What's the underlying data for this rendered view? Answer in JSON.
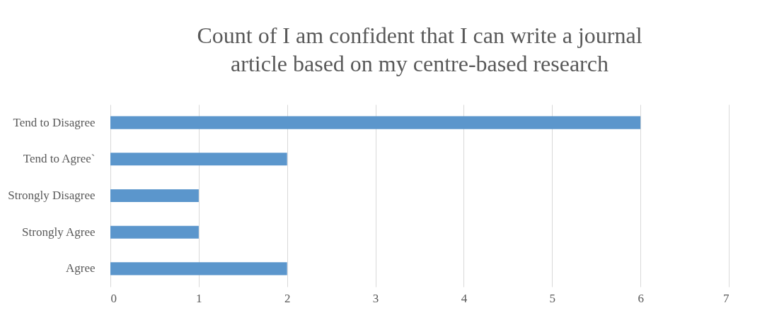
{
  "chart_data": {
    "type": "bar",
    "orientation": "horizontal",
    "title": [
      "Count of I am confident that I can write a journal",
      "article based on my centre-based research"
    ],
    "categories": [
      "Tend to Disagree",
      "Tend to Agree`",
      "Strongly Disagree",
      "Strongly Agree",
      "Agree"
    ],
    "values": [
      6,
      2,
      1,
      1,
      2
    ],
    "color": "#5b96cc",
    "xlim": [
      0,
      7
    ],
    "xticks": [
      0,
      1,
      2,
      3,
      4,
      5,
      6,
      7
    ],
    "grid": "x"
  }
}
